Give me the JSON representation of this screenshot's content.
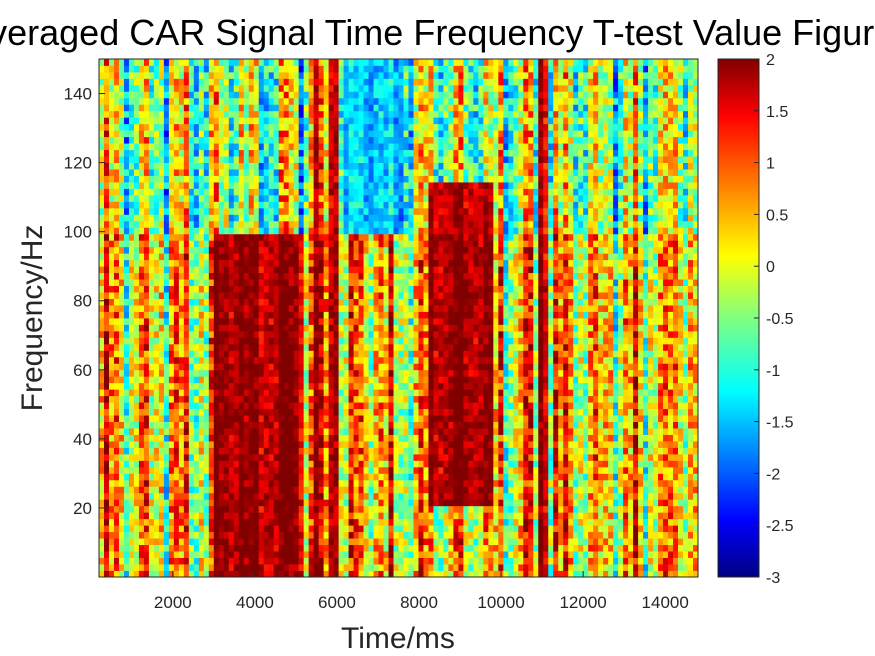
{
  "chart_data": {
    "type": "heatmap",
    "title": "Averaged CAR Signal Time Frequency T-test Value Figure",
    "xlabel": "Time/ms",
    "ylabel": "Frequency/Hz",
    "xlim": [
      200,
      14800
    ],
    "ylim": [
      0,
      150
    ],
    "xticks": [
      2000,
      4000,
      6000,
      8000,
      10000,
      12000,
      14000
    ],
    "yticks": [
      20,
      40,
      60,
      80,
      100,
      120,
      140
    ],
    "colorbar": {
      "colormap": "jet",
      "clim": [
        -3,
        2
      ],
      "ticks": [
        2,
        1.5,
        1,
        0.5,
        0,
        -0.5,
        -1,
        -1.5,
        -2,
        -2.5,
        -3
      ]
    },
    "grid": false,
    "summary_bands": [
      {
        "time_range": [
          3000,
          5200
        ],
        "freq_range": [
          0,
          100
        ],
        "t_value": 2
      },
      {
        "time_range": [
          8200,
          9800
        ],
        "freq_range": [
          20,
          115
        ],
        "t_value": 2
      },
      {
        "time_range": [
          5400,
          5600
        ],
        "freq_range": [
          0,
          150
        ],
        "t_value": 2
      },
      {
        "time_range": [
          5800,
          6000
        ],
        "freq_range": [
          0,
          150
        ],
        "t_value": 2
      },
      {
        "time_range": [
          10950,
          11150
        ],
        "freq_range": [
          0,
          150
        ],
        "t_value": 2
      },
      {
        "time_range": [
          6200,
          7600
        ],
        "freq_range": [
          100,
          150
        ],
        "t_value": -1.5
      }
    ]
  }
}
